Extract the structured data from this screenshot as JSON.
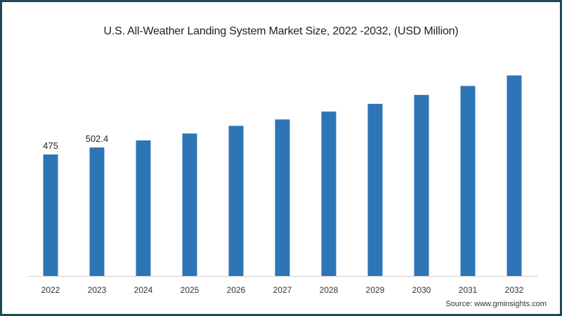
{
  "chart_data": {
    "type": "bar",
    "title": "U.S. All-Weather Landing System Market Size, 2022 -2032, (USD Million)",
    "categories": [
      "2022",
      "2023",
      "2024",
      "2025",
      "2026",
      "2027",
      "2028",
      "2029",
      "2030",
      "2031",
      "2032"
    ],
    "values": [
      475,
      502.4,
      530,
      557,
      587,
      612,
      643,
      673,
      708,
      743,
      784
    ],
    "data_labels": [
      "475",
      "502.4",
      null,
      null,
      null,
      null,
      null,
      null,
      null,
      null,
      null
    ],
    "xlabel": "",
    "ylabel": "",
    "ylim": [
      0,
      800
    ],
    "grid": false,
    "legend": "none",
    "bar_color": "#2e75b6",
    "source": "Source: www.gminsights.com"
  }
}
